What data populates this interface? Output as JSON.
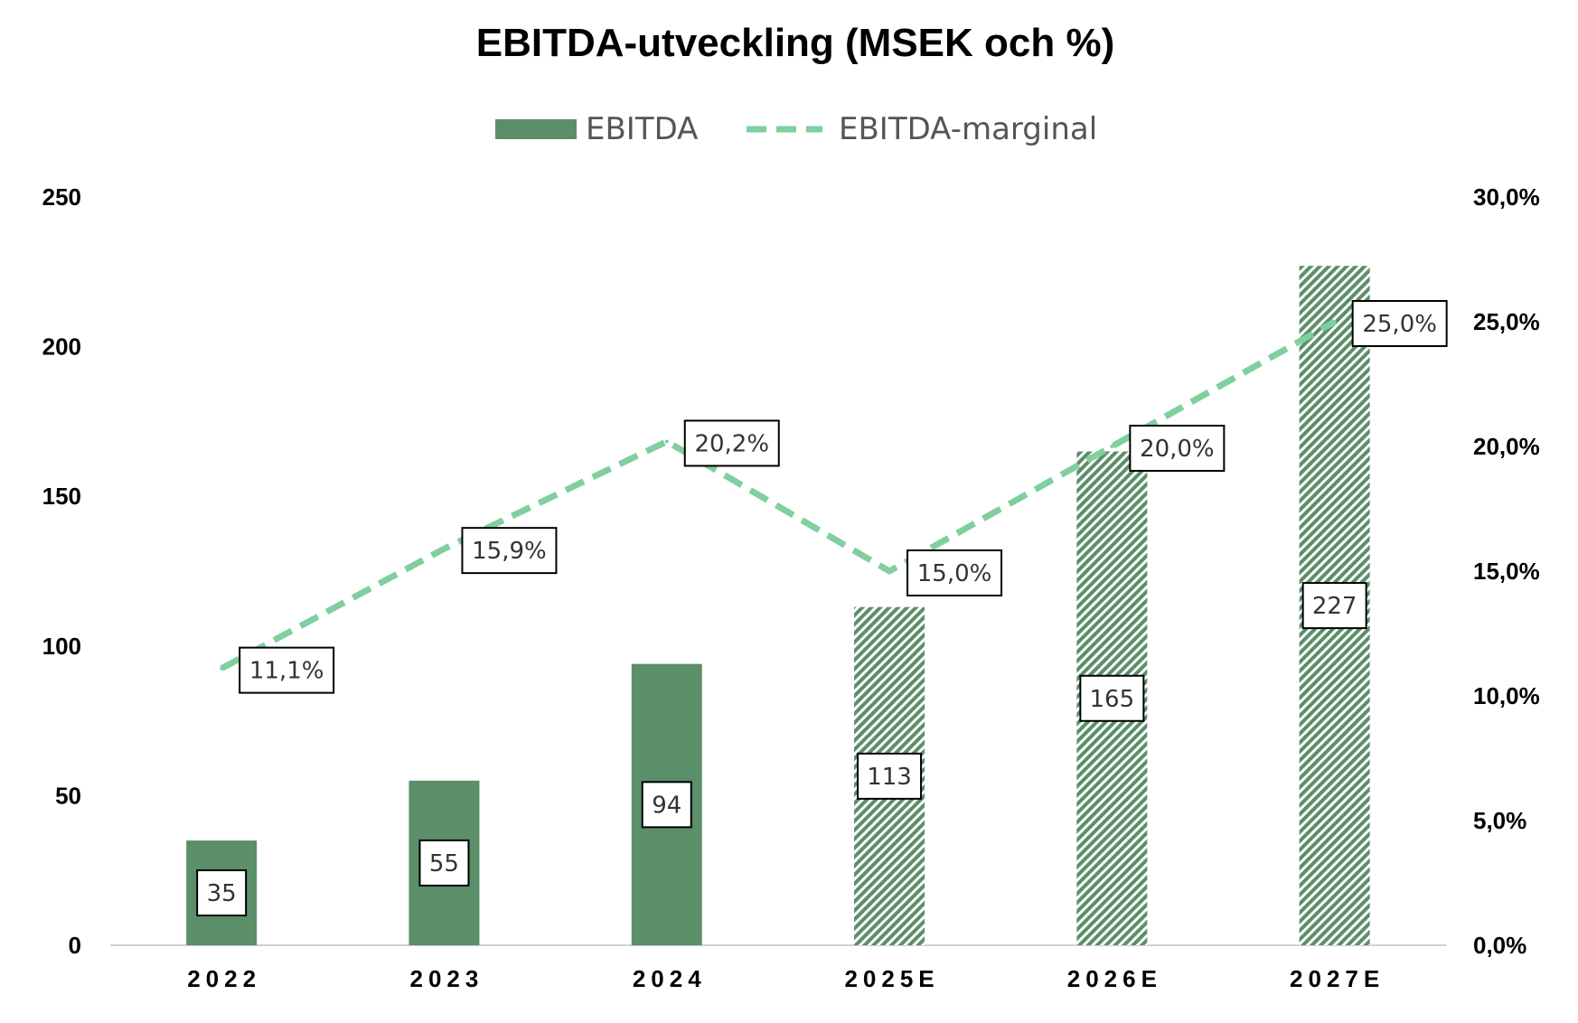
{
  "chart_data": {
    "type": "bar",
    "title": "EBITDA-utveckling (MSEK och %)",
    "categories": [
      "2022",
      "2023",
      "2024",
      "2025E",
      "2026E",
      "2027E"
    ],
    "series": [
      {
        "name": "EBITDA",
        "type": "bar",
        "axis": "left",
        "values": [
          35,
          55,
          94,
          113,
          165,
          227
        ],
        "labels": [
          "35",
          "55",
          "94",
          "113",
          "165",
          "227"
        ],
        "forecast_from_index": 3,
        "color": "#5b8f69"
      },
      {
        "name": "EBITDA-marginal",
        "type": "line",
        "style": "dashed",
        "axis": "right",
        "values": [
          11.1,
          15.9,
          20.2,
          15.0,
          20.0,
          25.0
        ],
        "labels": [
          "11,1%",
          "15,9%",
          "20,2%",
          "15,0%",
          "20,0%",
          "25,0%"
        ],
        "color": "#7fcf9f"
      }
    ],
    "y_left": {
      "ylim": [
        0,
        250
      ],
      "ticks": [
        "0",
        "50",
        "100",
        "150",
        "200",
        "250"
      ]
    },
    "y_right": {
      "ylim": [
        0,
        30
      ],
      "ticks": [
        "0,0%",
        "5,0%",
        "10,0%",
        "15,0%",
        "20,0%",
        "25,0%",
        "30,0%"
      ]
    },
    "grid": false,
    "legend_position": "top-center"
  }
}
